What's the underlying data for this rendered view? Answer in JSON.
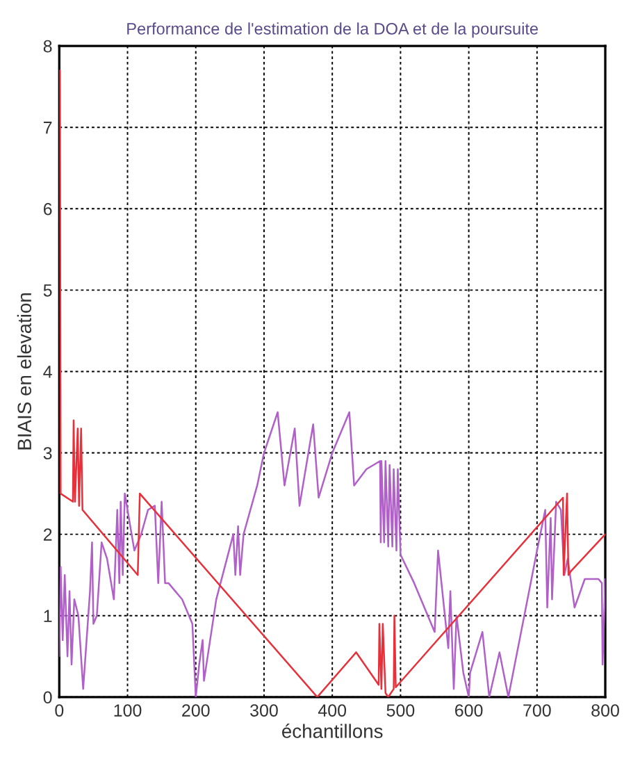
{
  "chart_data": {
    "type": "line",
    "title": "Performance de l'estimation de la DOA et de la poursuite",
    "xlabel": "échantillons",
    "ylabel": "BIAIS en elevation",
    "xlim": [
      0,
      800
    ],
    "ylim": [
      0,
      8
    ],
    "xticks": [
      0,
      100,
      200,
      300,
      400,
      500,
      600,
      700,
      800
    ],
    "yticks": [
      0,
      1,
      2,
      3,
      4,
      5,
      6,
      7,
      8
    ],
    "grid": true,
    "line_style": "solid",
    "marker": "none",
    "series": [
      {
        "color": "#b060c8",
        "x": [
          0,
          2,
          5,
          8,
          12,
          15,
          18,
          22,
          28,
          35,
          45,
          48,
          50,
          55,
          62,
          70,
          80,
          85,
          88,
          90,
          93,
          96,
          100,
          110,
          120,
          130,
          140,
          145,
          150,
          155,
          160,
          180,
          195,
          200,
          205,
          210,
          212,
          230,
          255,
          258,
          262,
          265,
          270,
          290,
          300,
          320,
          330,
          345,
          352,
          372,
          380,
          400,
          425,
          432,
          450,
          470,
          471,
          472,
          476,
          478,
          482,
          484,
          488,
          490,
          494,
          496,
          500,
          520,
          550,
          555,
          570,
          573,
          578,
          582,
          592,
          600,
          602,
          620,
          630,
          645,
          658,
          700,
          712,
          715,
          720,
          722,
          728,
          735,
          740,
          745,
          755,
          770,
          790,
          795,
          796,
          800
        ],
        "values": [
          0.5,
          1.6,
          0.7,
          1.5,
          0.5,
          1.3,
          0.4,
          1.2,
          1.0,
          0.1,
          1.3,
          1.9,
          0.9,
          1.0,
          1.9,
          1.7,
          1.2,
          2.3,
          1.4,
          2.4,
          1.5,
          2.5,
          2.3,
          1.8,
          2.0,
          2.3,
          2.35,
          1.4,
          2.4,
          1.4,
          1.4,
          1.2,
          0.9,
          0.0,
          0.4,
          0.7,
          0.2,
          1.2,
          2.0,
          1.5,
          2.1,
          1.5,
          2.0,
          2.6,
          3.0,
          3.5,
          2.6,
          3.3,
          2.35,
          3.35,
          2.45,
          3.0,
          3.5,
          2.6,
          2.8,
          2.9,
          1.9,
          2.9,
          1.9,
          2.9,
          1.85,
          2.85,
          1.85,
          2.8,
          1.8,
          2.8,
          1.75,
          1.4,
          0.8,
          1.8,
          0.6,
          1.3,
          0.1,
          1.0,
          0.3,
          0.0,
          0.3,
          0.8,
          0.0,
          0.55,
          0.0,
          1.8,
          2.3,
          1.1,
          2.2,
          1.2,
          2.4,
          2.3,
          1.5,
          1.7,
          1.1,
          1.45,
          1.45,
          1.4,
          0.4,
          1.45
        ]
      },
      {
        "color": "#e8303a",
        "x": [
          1,
          2,
          20,
          21,
          23,
          27,
          29,
          32,
          34,
          115,
          118,
          378,
          435,
          468,
          469,
          472,
          474,
          478,
          482,
          490,
          491,
          493,
          738,
          739,
          744,
          746,
          750,
          800
        ],
        "values": [
          7.7,
          2.5,
          2.4,
          3.4,
          2.4,
          3.3,
          2.35,
          3.3,
          2.3,
          1.5,
          2.5,
          0,
          0.55,
          0.15,
          0.9,
          0.1,
          0.9,
          0.05,
          0,
          0.1,
          1.0,
          0.12,
          2.45,
          1.5,
          2.5,
          1.5,
          1.55,
          2.0
        ]
      }
    ]
  }
}
